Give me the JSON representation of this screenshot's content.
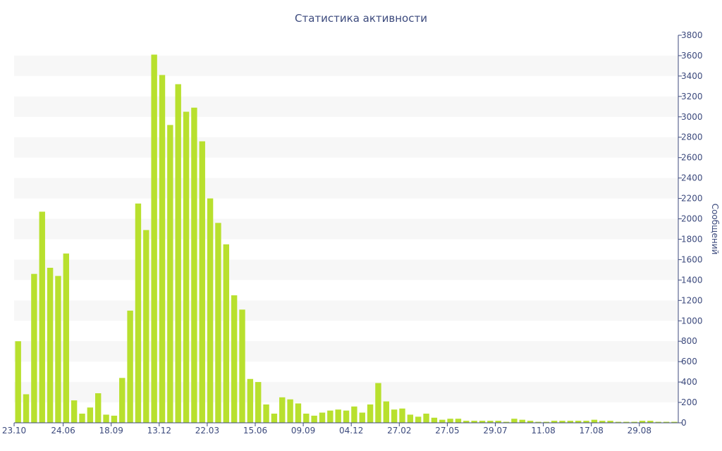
{
  "chart_data": {
    "type": "bar",
    "title": "Статистика активности",
    "ylabel": "Сообщений",
    "xlabel": "",
    "ylim": [
      0,
      3800
    ],
    "yticks": [
      0,
      200,
      400,
      600,
      800,
      1000,
      1200,
      1400,
      1600,
      1800,
      2000,
      2200,
      2400,
      2600,
      2800,
      3000,
      3200,
      3400,
      3600,
      3800
    ],
    "y_axis_side": "right",
    "grid": "alternating horizontal bands",
    "legend": "none",
    "bar_color": "#b8e02e",
    "x_tick_labels": [
      {
        "label": "23.10",
        "index": 0
      },
      {
        "label": "24.06",
        "index": 6
      },
      {
        "label": "18.09",
        "index": 12
      },
      {
        "label": "13.12",
        "index": 18
      },
      {
        "label": "22.03",
        "index": 24
      },
      {
        "label": "15.06",
        "index": 30
      },
      {
        "label": "09.09",
        "index": 36
      },
      {
        "label": "04.12",
        "index": 42
      },
      {
        "label": "27.02",
        "index": 48
      },
      {
        "label": "27.05",
        "index": 54
      },
      {
        "label": "29.07",
        "index": 60
      },
      {
        "label": "11.08",
        "index": 66
      },
      {
        "label": "17.08",
        "index": 72
      },
      {
        "label": "29.08",
        "index": 78
      }
    ],
    "values": [
      800,
      280,
      1460,
      2070,
      1520,
      1440,
      1660,
      220,
      90,
      150,
      290,
      80,
      70,
      440,
      1100,
      2150,
      1890,
      3610,
      3410,
      2920,
      3320,
      3050,
      3090,
      2760,
      2200,
      1960,
      1750,
      1250,
      1110,
      430,
      400,
      180,
      90,
      250,
      230,
      190,
      90,
      70,
      100,
      120,
      130,
      120,
      160,
      100,
      180,
      390,
      210,
      130,
      140,
      80,
      60,
      90,
      50,
      30,
      40,
      40,
      20,
      20,
      20,
      20,
      20,
      10,
      40,
      30,
      20,
      10,
      10,
      20,
      20,
      20,
      20,
      20,
      30,
      20,
      20,
      10,
      10,
      10,
      20,
      20,
      10,
      10,
      10
    ]
  }
}
